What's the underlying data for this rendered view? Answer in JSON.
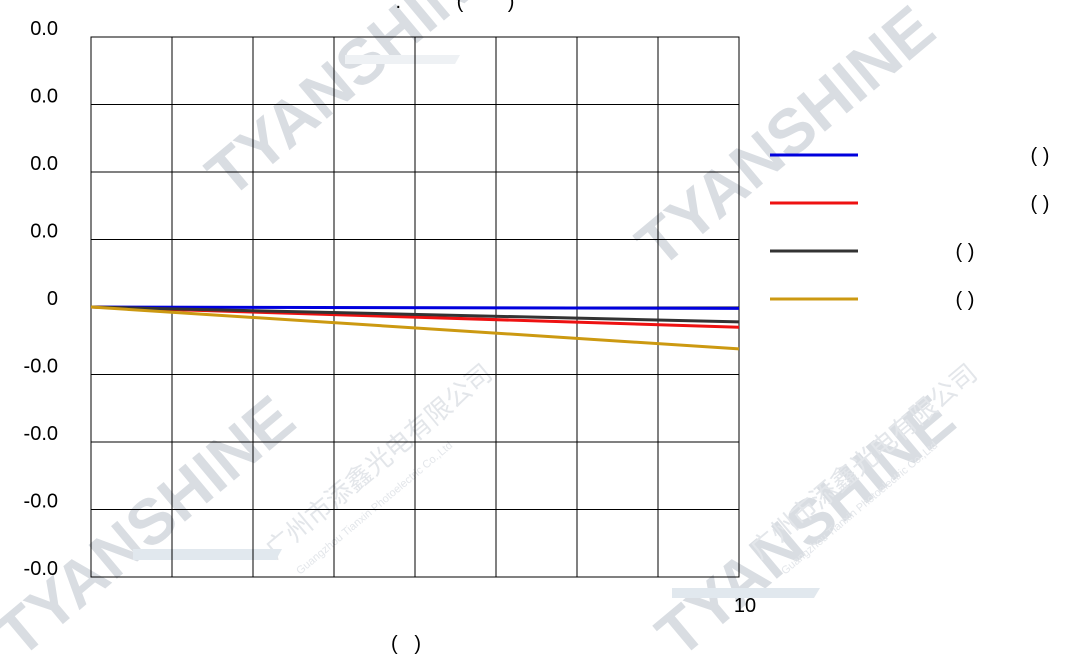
{
  "chart_data": {
    "type": "line",
    "title": ".          (        )",
    "xlabel": "(   )",
    "ylabel": "",
    "x_ticks": [
      "10"
    ],
    "y_ticks": [
      "0.0",
      "0.0",
      "0.0",
      "0.0",
      "0",
      "-0.0",
      "-0.0",
      "-0.0",
      "-0.0"
    ],
    "xlim": [
      0,
      10
    ],
    "ylim": [
      -4,
      4
    ],
    "grid": true,
    "legend_position": "right",
    "series": [
      {
        "name": "( )",
        "color": "#0000dd",
        "x": [
          0,
          10
        ],
        "y": [
          0,
          -0.02
        ]
      },
      {
        "name": "( )",
        "color": "#ee1111",
        "x": [
          0,
          10
        ],
        "y": [
          0,
          -0.3
        ]
      },
      {
        "name": "( )",
        "color": "#333333",
        "x": [
          0,
          10
        ],
        "y": [
          0,
          -0.22
        ]
      },
      {
        "name": "( )",
        "color": "#cc9911",
        "x": [
          0,
          10
        ],
        "y": [
          0,
          -0.62
        ]
      }
    ]
  },
  "watermark": {
    "brand": "TYANSHINE",
    "cn": "广州市添鑫光电有限公司",
    "en": "Guangzhou Tianxin Photoelectric Co.,Ltd"
  }
}
